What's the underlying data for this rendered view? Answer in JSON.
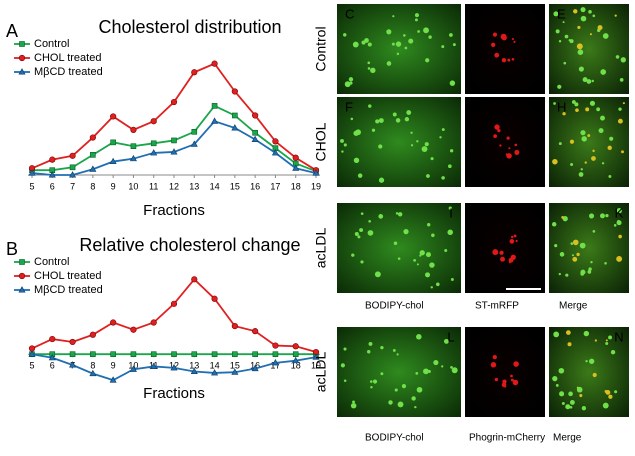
{
  "chart_data": [
    {
      "type": "line",
      "panel": "A",
      "title": "Cholesterol distribution",
      "xlabel": "Fractions",
      "categories": [
        "5",
        "6",
        "7",
        "8",
        "9",
        "10",
        "11",
        "12",
        "13",
        "14",
        "15",
        "16",
        "17",
        "18",
        "19"
      ],
      "ylim": [
        0,
        125
      ],
      "series": [
        {
          "name": "Control",
          "color": "#1aa64a",
          "marker": "square",
          "values": [
            5,
            5,
            8,
            21,
            34,
            30,
            33,
            36,
            45,
            72,
            62,
            44,
            28,
            12,
            4
          ]
        },
        {
          "name": "CHOL treated",
          "color": "#e02020",
          "marker": "circle",
          "values": [
            7,
            16,
            20,
            39,
            61,
            47,
            56,
            76,
            107,
            116,
            87,
            62,
            35,
            18,
            5
          ]
        },
        {
          "name": "MβCD treated",
          "color": "#1f6fb2",
          "marker": "triangle",
          "values": [
            2,
            0,
            0,
            6,
            14,
            17,
            23,
            24,
            32,
            56,
            49,
            37,
            23,
            7,
            2
          ]
        }
      ]
    },
    {
      "type": "line",
      "panel": "B",
      "title": "Relative cholesterol change",
      "xlabel": "Fractions",
      "categories": [
        "5",
        "6",
        "7",
        "8",
        "9",
        "10",
        "11",
        "12",
        "13",
        "14",
        "15",
        "16",
        "17",
        "18",
        "19"
      ],
      "ylim": [
        -40,
        110
      ],
      "series": [
        {
          "name": "Control",
          "color": "#1aa64a",
          "marker": "square",
          "values": [
            0,
            0,
            0,
            0,
            0,
            0,
            0,
            0,
            0,
            0,
            0,
            0,
            0,
            0,
            0
          ]
        },
        {
          "name": "CHOL treated",
          "color": "#e02020",
          "marker": "circle",
          "values": [
            8,
            21,
            17,
            27,
            44,
            34,
            44,
            70,
            104,
            77,
            39,
            32,
            12,
            11,
            3
          ]
        },
        {
          "name": "MβCD treated",
          "color": "#1f6fb2",
          "marker": "triangle",
          "values": [
            0,
            -5,
            -15,
            -27,
            -36,
            -21,
            -17,
            -19,
            -24,
            -26,
            -25,
            -20,
            -12,
            -9,
            -4
          ]
        }
      ]
    }
  ],
  "images": {
    "rows": [
      "Control",
      "CHOL",
      "acLDL",
      "acLDL"
    ],
    "letters": [
      [
        "C",
        "D",
        "E"
      ],
      [
        "F",
        "G",
        "H"
      ],
      [
        "I",
        "J",
        "K"
      ],
      [
        "L",
        "M",
        "N"
      ]
    ],
    "captions_top": [
      "BODIPY-chol",
      "ST-mRFP",
      "Merge"
    ],
    "captions_bottom": [
      "BODIPY-chol",
      "Phogrin-mCherry",
      "Merge"
    ]
  }
}
